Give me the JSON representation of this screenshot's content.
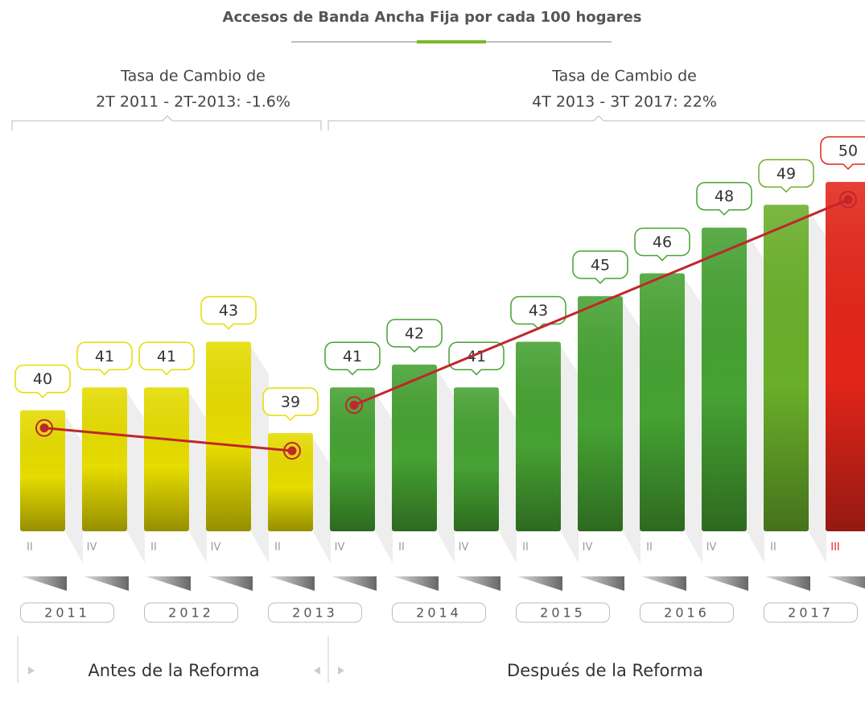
{
  "chart_data": {
    "type": "bar",
    "title": "Accesos de Banda Ancha Fija por cada 100 hogares",
    "categories": [
      "II",
      "IV",
      "II",
      "IV",
      "II",
      "IV",
      "II",
      "IV",
      "II",
      "IV",
      "II",
      "IV",
      "II",
      "III"
    ],
    "values": [
      40,
      41,
      41,
      43,
      39,
      41,
      42,
      41,
      43,
      45,
      46,
      48,
      49,
      50
    ],
    "colors": [
      "#e6dc00",
      "#e6dc00",
      "#e6dc00",
      "#e6dc00",
      "#e6dc00",
      "#46a232",
      "#46a232",
      "#46a232",
      "#46a232",
      "#46a232",
      "#46a232",
      "#46a232",
      "#6aaf2a",
      "#e4261a"
    ],
    "years": [
      "2011",
      "2012",
      "2013",
      "2014",
      "2015",
      "2016",
      "2017"
    ],
    "sections": [
      {
        "label": "Antes de la Reforma",
        "rate": [
          "Tasa de Cambio de",
          "2T 2011 - 2T-2013: -1.6%"
        ]
      },
      {
        "label": "Después de la Reforma",
        "rate": [
          "Tasa de Cambio de",
          "4T 2013 - 3T 2017: 22%"
        ]
      }
    ]
  }
}
